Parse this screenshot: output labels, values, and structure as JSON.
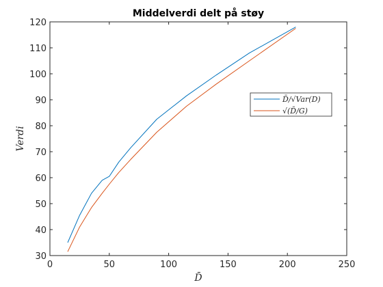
{
  "chart_data": {
    "type": "line",
    "title": "Middelverdi delt på støy",
    "xlabel": "D̄",
    "ylabel": "Verdi",
    "xlim": [
      0,
      250
    ],
    "ylim": [
      30,
      120
    ],
    "xticks": [
      0,
      50,
      100,
      150,
      200,
      250
    ],
    "yticks": [
      30,
      40,
      50,
      60,
      70,
      80,
      90,
      100,
      110,
      120
    ],
    "grid": false,
    "legend_position": "center-right",
    "series": [
      {
        "name": "D̄/√Var(D)",
        "color": "#0072BD",
        "x": [
          15,
          25,
          35,
          44,
          50,
          58,
          68,
          90,
          115,
          140,
          168,
          207
        ],
        "y": [
          35.0,
          45.5,
          54.0,
          59.0,
          60.5,
          66.0,
          71.5,
          82.5,
          91.5,
          99.5,
          108.0,
          118.0
        ]
      },
      {
        "name": "√(D̄/G)",
        "color": "#D95319",
        "x": [
          15,
          25,
          35,
          44,
          50,
          58,
          68,
          90,
          115,
          140,
          168,
          207
        ],
        "y": [
          31.5,
          41.0,
          48.5,
          54.0,
          57.5,
          62.0,
          67.0,
          77.5,
          87.5,
          96.0,
          105.0,
          117.5
        ]
      }
    ]
  }
}
